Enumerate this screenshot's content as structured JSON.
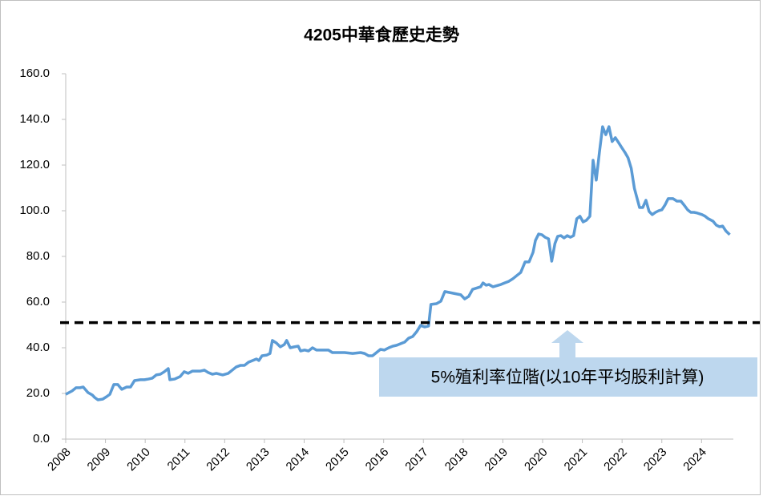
{
  "chart_data": {
    "type": "line",
    "title": "4205中華食歷史走勢",
    "color": "#5b9bd5",
    "xlim": [
      2008,
      2024.8
    ],
    "xticks": [
      2008,
      2009,
      2010,
      2011,
      2012,
      2013,
      2014,
      2015,
      2016,
      2017,
      2018,
      2019,
      2020,
      2021,
      2022,
      2023,
      2024
    ],
    "ylim": [
      0,
      160
    ],
    "yticks": [
      {
        "value": 0,
        "label": "0.0"
      },
      {
        "value": 20,
        "label": "20.0"
      },
      {
        "value": 40,
        "label": "40.0"
      },
      {
        "value": 60,
        "label": "60.0"
      },
      {
        "value": 80,
        "label": "80.0"
      },
      {
        "value": 100,
        "label": "100.0"
      },
      {
        "value": 120,
        "label": "120.0"
      },
      {
        "value": 140,
        "label": "140.0"
      },
      {
        "value": 160,
        "label": "160.0"
      }
    ],
    "grid": false,
    "reference_line": {
      "value": 51,
      "annotation": "5%殖利率位階(以10年平均股利計算)"
    },
    "x": [
      2008.0,
      2008.16,
      2008.26,
      2008.36,
      2008.44,
      2008.56,
      2008.67,
      2008.73,
      2008.81,
      2008.93,
      2009.03,
      2009.11,
      2009.21,
      2009.31,
      2009.41,
      2009.53,
      2009.63,
      2009.73,
      2009.88,
      2009.98,
      2010.08,
      2010.18,
      2010.28,
      2010.38,
      2010.48,
      2010.58,
      2010.62,
      2010.74,
      2010.88,
      2010.98,
      2011.08,
      2011.19,
      2011.39,
      2011.49,
      2011.59,
      2011.69,
      2011.79,
      2011.95,
      2012.09,
      2012.19,
      2012.29,
      2012.4,
      2012.5,
      2012.6,
      2012.7,
      2012.8,
      2012.86,
      2012.94,
      2013.06,
      2013.14,
      2013.2,
      2013.3,
      2013.4,
      2013.5,
      2013.56,
      2013.65,
      2013.75,
      2013.85,
      2013.91,
      2014.01,
      2014.11,
      2014.21,
      2014.31,
      2014.41,
      2014.51,
      2014.61,
      2014.71,
      2015.02,
      2015.22,
      2015.42,
      2015.52,
      2015.62,
      2015.72,
      2015.82,
      2015.92,
      2016.02,
      2016.13,
      2016.23,
      2016.33,
      2016.43,
      2016.53,
      2016.63,
      2016.73,
      2016.83,
      2016.93,
      2017.03,
      2017.13,
      2017.19,
      2017.33,
      2017.44,
      2017.54,
      2017.74,
      2017.94,
      2018.04,
      2018.14,
      2018.24,
      2018.44,
      2018.5,
      2018.58,
      2018.65,
      2018.75,
      2018.95,
      2019.05,
      2019.15,
      2019.25,
      2019.35,
      2019.45,
      2019.56,
      2019.66,
      2019.76,
      2019.82,
      2019.9,
      2019.98,
      2020.06,
      2020.15,
      2020.23,
      2020.31,
      2020.38,
      2020.46,
      2020.54,
      2020.62,
      2020.7,
      2020.78,
      2020.86,
      2020.94,
      2021.02,
      2021.1,
      2021.19,
      2021.27,
      2021.35,
      2021.43,
      2021.51,
      2021.59,
      2021.67,
      2021.75,
      2021.83,
      2021.91,
      2021.99,
      2022.07,
      2022.15,
      2022.23,
      2022.31,
      2022.44,
      2022.52,
      2022.6,
      2022.68,
      2022.76,
      2022.84,
      2022.92,
      2023.0,
      2023.08,
      2023.16,
      2023.28,
      2023.38,
      2023.48,
      2023.56,
      2023.65,
      2023.73,
      2023.81,
      2023.89,
      2024.01,
      2024.09,
      2024.17,
      2024.29,
      2024.37,
      2024.45,
      2024.53,
      2024.61,
      2024.71
    ],
    "values": [
      19.6,
      21.1,
      22.5,
      22.5,
      22.8,
      20.4,
      19.3,
      18.2,
      17.2,
      17.5,
      18.6,
      19.6,
      23.9,
      23.9,
      21.8,
      22.8,
      22.8,
      25.6,
      26.0,
      26.0,
      26.3,
      26.7,
      28.1,
      28.4,
      29.5,
      30.9,
      26.0,
      26.3,
      27.4,
      29.5,
      28.8,
      29.8,
      29.8,
      30.2,
      29.1,
      28.4,
      28.8,
      28.1,
      28.8,
      30.2,
      31.6,
      32.3,
      32.3,
      33.7,
      34.4,
      35.1,
      34.4,
      36.5,
      36.8,
      37.5,
      43.2,
      42.1,
      40.4,
      41.4,
      43.2,
      40.0,
      40.4,
      40.7,
      38.6,
      39.0,
      38.6,
      40.0,
      39.0,
      39.0,
      39.0,
      39.0,
      37.9,
      37.9,
      37.5,
      37.9,
      37.5,
      36.5,
      36.5,
      37.9,
      39.3,
      39.0,
      40.0,
      40.7,
      41.1,
      41.8,
      42.5,
      44.2,
      44.9,
      47.0,
      49.8,
      49.1,
      49.5,
      59.0,
      59.3,
      60.4,
      64.6,
      63.9,
      63.2,
      61.4,
      62.5,
      65.6,
      66.7,
      68.4,
      67.4,
      67.7,
      66.7,
      67.7,
      68.4,
      69.1,
      70.2,
      71.6,
      73.0,
      77.6,
      77.6,
      81.8,
      87.0,
      89.8,
      89.5,
      88.4,
      87.7,
      77.9,
      85.6,
      88.8,
      89.1,
      88.1,
      89.1,
      88.4,
      89.1,
      96.5,
      97.6,
      95.1,
      95.8,
      97.6,
      122.1,
      113.4,
      125.6,
      136.8,
      133.3,
      136.8,
      130.3,
      132.0,
      129.9,
      127.7,
      125.6,
      123.2,
      118.6,
      109.8,
      101.4,
      101.4,
      104.6,
      99.7,
      98.3,
      99.3,
      100.0,
      100.4,
      102.5,
      105.3,
      105.3,
      104.2,
      104.2,
      102.5,
      100.4,
      99.3,
      99.3,
      99.0,
      98.3,
      97.6,
      96.5,
      95.4,
      93.7,
      93.0,
      93.3,
      91.2,
      89.5
    ]
  }
}
